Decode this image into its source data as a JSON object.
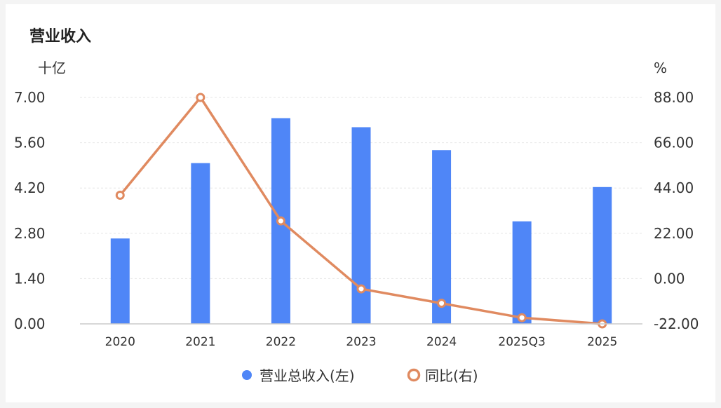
{
  "title": "营业收入",
  "chart_data": {
    "type": "bar+line",
    "categories": [
      "2020",
      "2021",
      "2022",
      "2023",
      "2024",
      "2025Q3",
      "2025"
    ],
    "left_axis": {
      "unit": "十亿",
      "ylim": [
        0,
        7
      ],
      "ticks": [
        "0.00",
        "1.40",
        "2.80",
        "4.20",
        "5.60",
        "7.00"
      ]
    },
    "right_axis": {
      "unit": "%",
      "ylim": [
        -22,
        88
      ],
      "ticks": [
        "-22.00",
        "0.00",
        "22.00",
        "44.00",
        "66.00",
        "88.00"
      ]
    },
    "series": [
      {
        "name": "营业总收入(左)",
        "type": "bar",
        "axis": "left",
        "color": "#4f86f7",
        "values": [
          2.64,
          4.97,
          6.36,
          6.08,
          5.37,
          3.17,
          4.23
        ]
      },
      {
        "name": "同比(右)",
        "type": "line",
        "axis": "right",
        "color": "#e08a60",
        "values": [
          40.5,
          88.0,
          28.0,
          -5.0,
          -12.0,
          -19.0,
          -22.0
        ]
      }
    ],
    "grid": true,
    "legend": "bottom-center"
  }
}
